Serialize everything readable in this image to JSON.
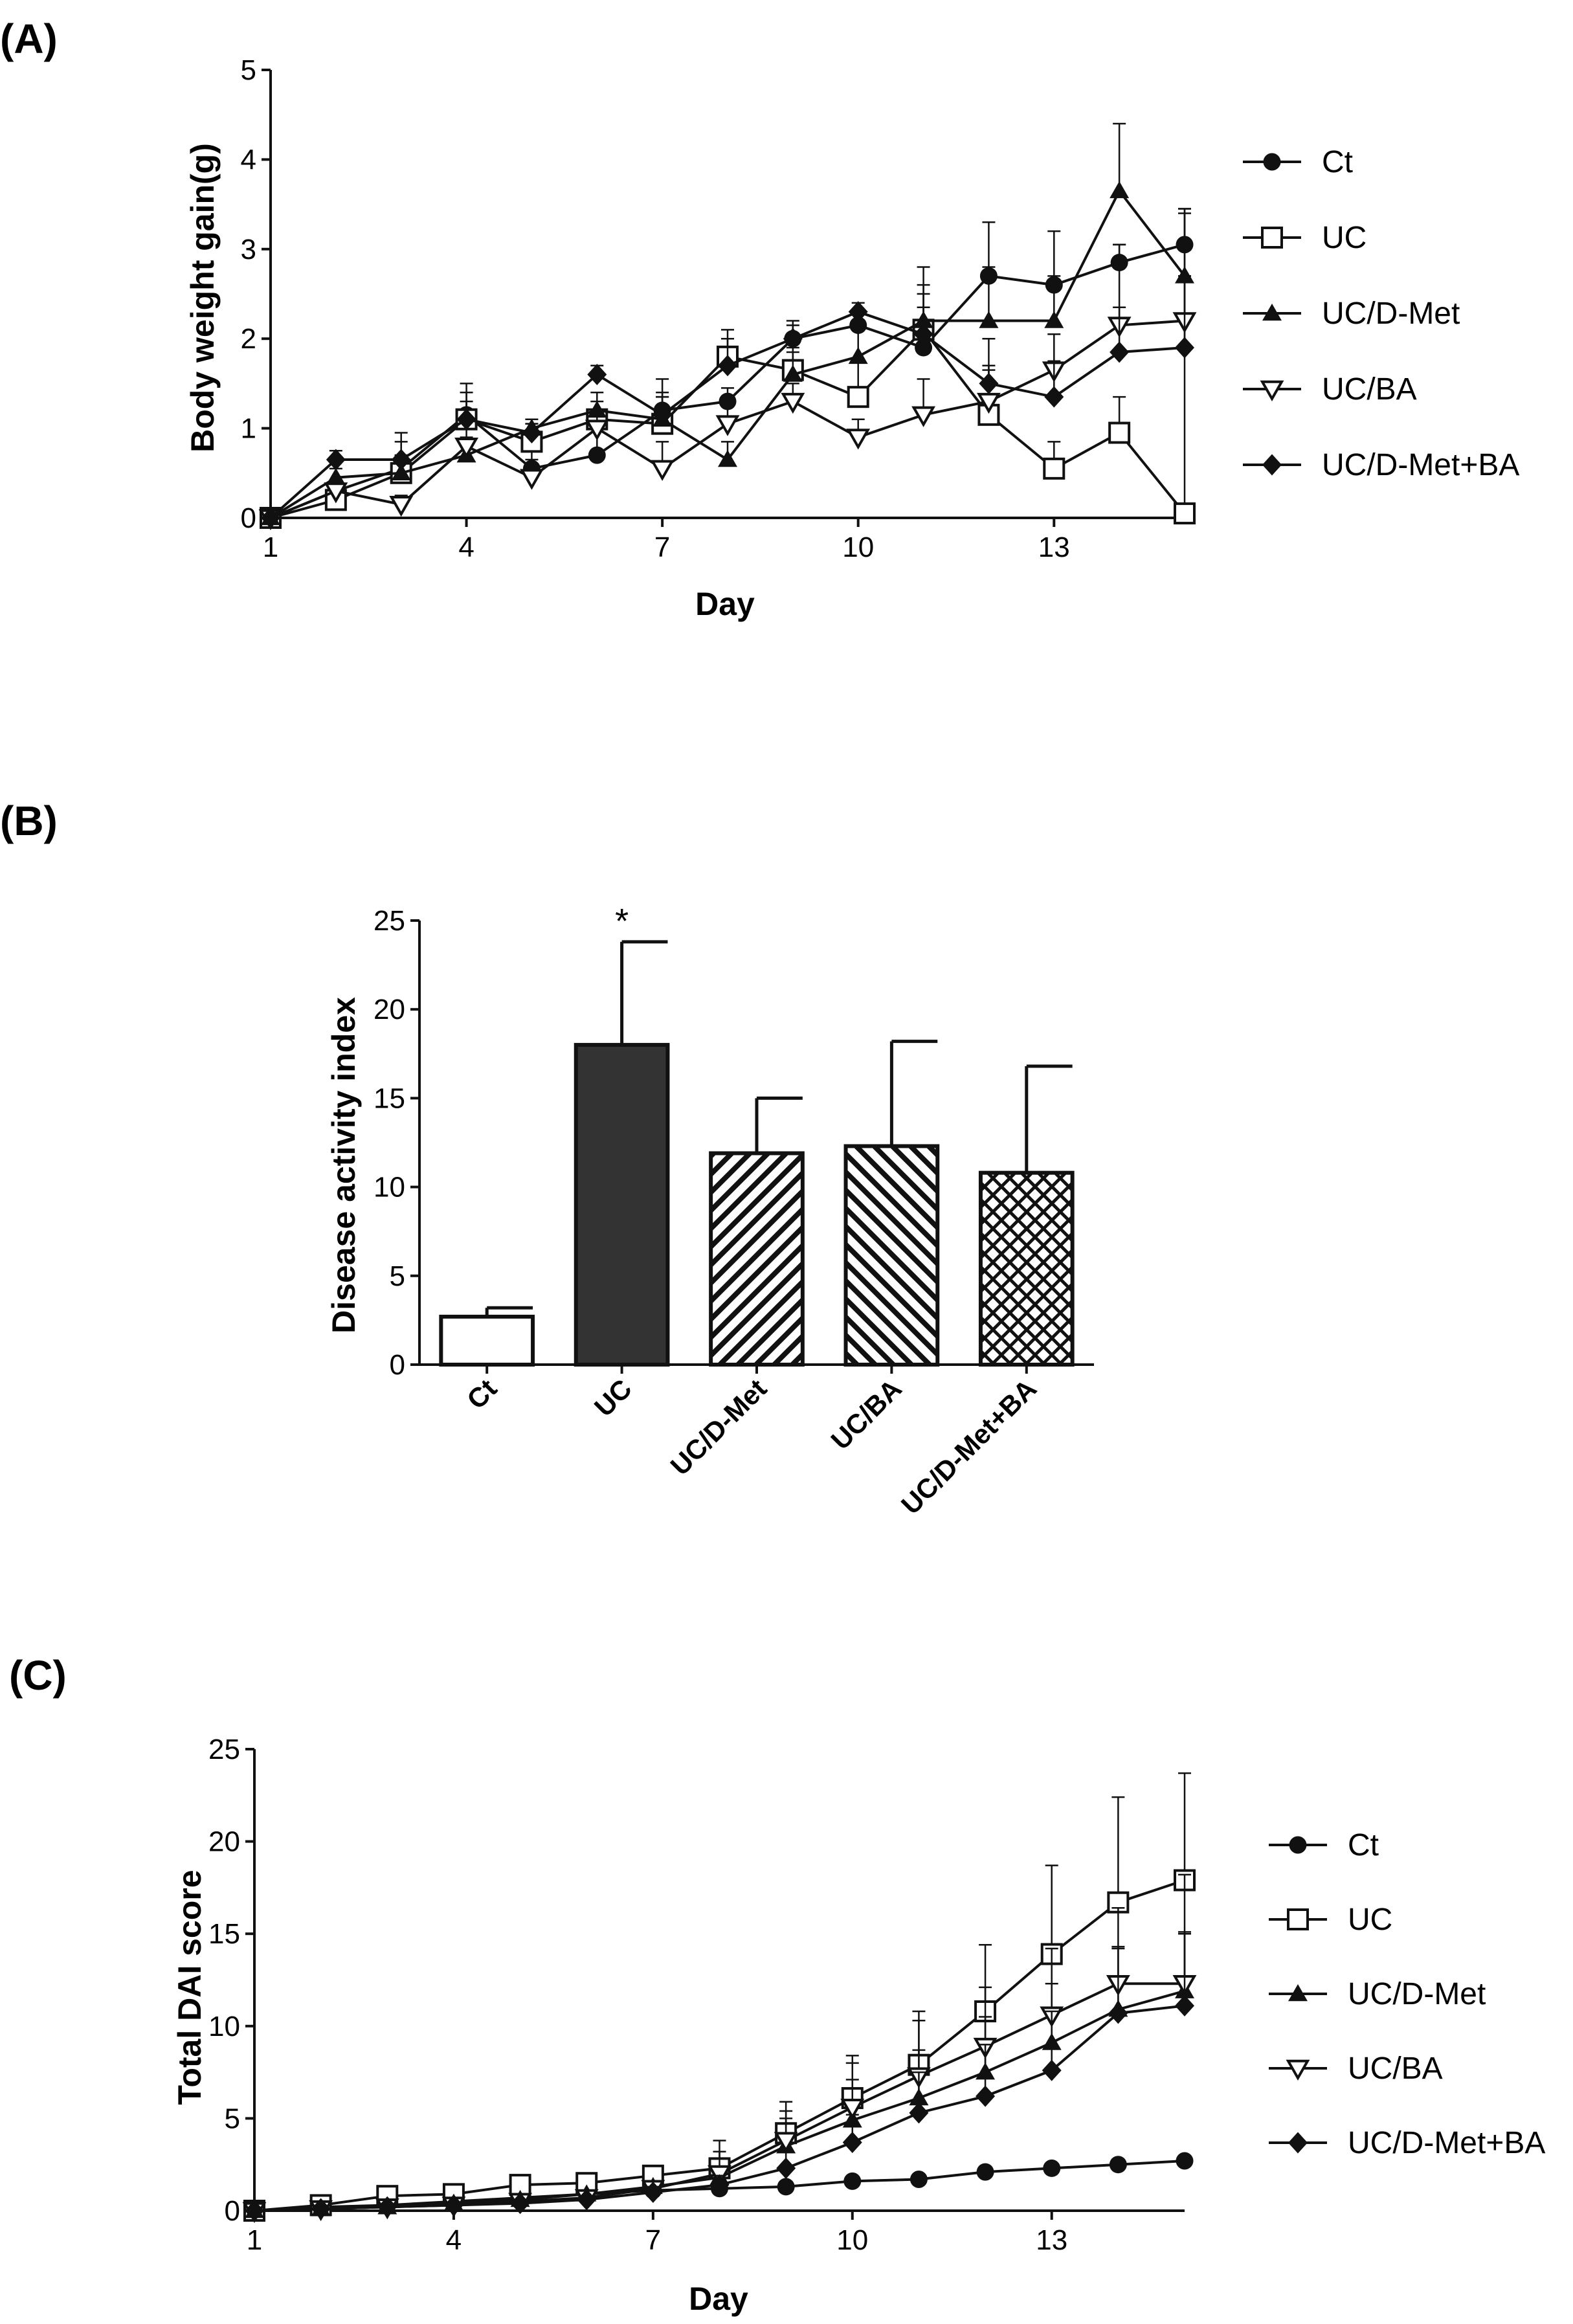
{
  "figure": {
    "panels": [
      {
        "label": "(A)"
      },
      {
        "label": "(B)"
      },
      {
        "label": "(C)"
      }
    ]
  },
  "chart_data": [
    {
      "type": "line",
      "title": "",
      "xlabel": "Day",
      "ylabel": "Body weight gain(g)",
      "xlim": [
        1,
        15
      ],
      "ylim": [
        0,
        5
      ],
      "xticks": [
        1,
        4,
        7,
        10,
        13
      ],
      "yticks": [
        0,
        1,
        2,
        3,
        4,
        5
      ],
      "legend_position": "right",
      "x": [
        1,
        2,
        3,
        4,
        5,
        6,
        7,
        8,
        9,
        10,
        11,
        12,
        13,
        14,
        15
      ],
      "series": [
        {
          "name": "Ct",
          "marker": "circle-filled",
          "values": [
            0,
            0.3,
            0.55,
            1.15,
            0.55,
            0.7,
            1.2,
            1.3,
            2.0,
            2.15,
            1.9,
            2.7,
            2.6,
            2.85,
            3.05
          ],
          "errors": [
            0,
            0.1,
            0.4,
            0.35,
            0.2,
            0.4,
            0.35,
            0.15,
            0.15,
            0.15,
            0.6,
            0.6,
            0.6,
            0.2,
            0.4
          ]
        },
        {
          "name": "UC",
          "marker": "square-open",
          "values": [
            0,
            0.2,
            0.5,
            1.1,
            0.85,
            1.1,
            1.05,
            1.8,
            1.65,
            1.35,
            2.1,
            1.15,
            0.55,
            0.95,
            0.05
          ],
          "errors": [
            0,
            0.05,
            0.2,
            0.3,
            0.2,
            0.2,
            0.3,
            0.3,
            0.2,
            0.4,
            0.7,
            0.5,
            0.3,
            0.4,
            3.4
          ]
        },
        {
          "name": "UC/D-Met",
          "marker": "triangle-up-filled",
          "values": [
            0,
            0.45,
            0.5,
            0.7,
            1.0,
            1.2,
            1.1,
            0.65,
            1.6,
            1.8,
            2.2,
            2.2,
            2.2,
            3.65,
            2.7
          ],
          "errors": [
            0,
            0.1,
            0.2,
            0.2,
            0.1,
            0.2,
            0.3,
            0.2,
            0.3,
            0.3,
            0.4,
            0.6,
            0.5,
            0.75,
            0.7
          ]
        },
        {
          "name": "UC/BA",
          "marker": "triangle-down-open",
          "values": [
            0,
            0.3,
            0.15,
            0.8,
            0.45,
            1.0,
            0.55,
            1.05,
            1.3,
            0.9,
            1.15,
            1.3,
            1.65,
            2.15,
            2.2
          ],
          "errors": [
            0,
            0.1,
            0.1,
            0.3,
            0.2,
            0.2,
            0.3,
            0.3,
            0.2,
            0.2,
            0.4,
            0.4,
            0.4,
            0.9,
            0.5
          ]
        },
        {
          "name": "UC/D-Met+BA",
          "marker": "diamond-filled",
          "values": [
            0,
            0.65,
            0.65,
            1.1,
            0.95,
            1.6,
            1.15,
            1.7,
            2.0,
            2.3,
            2.05,
            1.5,
            1.35,
            1.85,
            1.9
          ],
          "errors": [
            0,
            0.1,
            0.2,
            0.2,
            0.1,
            0.1,
            0.2,
            0.3,
            0.2,
            0.1,
            0.3,
            0.5,
            0.4,
            0.5,
            0.8
          ]
        }
      ]
    },
    {
      "type": "bar",
      "title": "",
      "xlabel": "",
      "ylabel": "Disease activity index",
      "ylim": [
        0,
        25
      ],
      "yticks": [
        0,
        5,
        10,
        15,
        20,
        25
      ],
      "categories": [
        "Ct",
        "UC",
        "UC/D-Met",
        "UC/BA",
        "UC/D-Met+BA"
      ],
      "values": [
        2.7,
        18.0,
        11.9,
        12.3,
        10.8
      ],
      "errors": [
        0.5,
        5.8,
        3.1,
        5.9,
        6.0
      ],
      "fills": [
        "white",
        "dark",
        "hatch-forward",
        "hatch-back",
        "crosshatch"
      ],
      "annotations": [
        {
          "category": "UC",
          "text": "*"
        }
      ]
    },
    {
      "type": "line",
      "title": "",
      "xlabel": "Day",
      "ylabel": "Total DAI score",
      "xlim": [
        1,
        15
      ],
      "ylim": [
        0,
        25
      ],
      "xticks": [
        1,
        4,
        7,
        10,
        13
      ],
      "yticks": [
        0,
        5,
        10,
        15,
        20,
        25
      ],
      "legend_position": "right",
      "x": [
        1,
        2,
        3,
        4,
        5,
        6,
        7,
        8,
        9,
        10,
        11,
        12,
        13,
        14,
        15
      ],
      "series": [
        {
          "name": "Ct",
          "marker": "circle-filled",
          "values": [
            0,
            0.2,
            0.3,
            0.5,
            0.7,
            0.9,
            1.1,
            1.2,
            1.3,
            1.6,
            1.7,
            2.1,
            2.3,
            2.5,
            2.7
          ],
          "errors": [
            0,
            0,
            0,
            0,
            0,
            0,
            0,
            0,
            0,
            0,
            0,
            0,
            0,
            0,
            0
          ]
        },
        {
          "name": "UC",
          "marker": "square-open",
          "values": [
            0,
            0.3,
            0.8,
            0.9,
            1.4,
            1.5,
            1.9,
            2.3,
            4.2,
            6.1,
            7.9,
            10.8,
            13.9,
            16.7,
            17.9
          ],
          "errors": [
            0,
            0.1,
            0.2,
            0.3,
            0.3,
            0.3,
            0.5,
            1.5,
            1.7,
            2.3,
            2.9,
            3.6,
            4.8,
            5.7,
            5.8
          ]
        },
        {
          "name": "UC/D-Met",
          "marker": "triangle-up-filled",
          "values": [
            0,
            0.1,
            0.2,
            0.4,
            0.6,
            0.9,
            1.3,
            1.8,
            3.5,
            4.9,
            6.1,
            7.5,
            9.1,
            10.9,
            11.9
          ],
          "errors": [
            0,
            0,
            0,
            0.1,
            0.2,
            0.2,
            0.3,
            0.6,
            1.5,
            2.2,
            2.6,
            3.0,
            3.2,
            3.3,
            3.1
          ]
        },
        {
          "name": "UC/BA",
          "marker": "triangle-down-open",
          "values": [
            0,
            0.1,
            0.2,
            0.3,
            0.5,
            0.7,
            1.2,
            2.0,
            3.8,
            5.6,
            7.3,
            8.9,
            10.6,
            12.3,
            12.3
          ],
          "errors": [
            0,
            0,
            0,
            0.1,
            0.2,
            0.2,
            0.4,
            1.2,
            1.6,
            2.4,
            3.0,
            3.2,
            3.6,
            4.1,
            5.9
          ]
        },
        {
          "name": "UC/D-Met+BA",
          "marker": "diamond-filled",
          "values": [
            0,
            0.1,
            0.2,
            0.3,
            0.4,
            0.6,
            1.0,
            1.4,
            2.3,
            3.7,
            5.3,
            6.2,
            7.6,
            10.7,
            11.1
          ],
          "errors": [
            0,
            0,
            0,
            0,
            0.1,
            0.2,
            0.3,
            0.5,
            0.9,
            1.5,
            2.2,
            2.8,
            3.2,
            3.6,
            4.0
          ]
        }
      ]
    }
  ]
}
